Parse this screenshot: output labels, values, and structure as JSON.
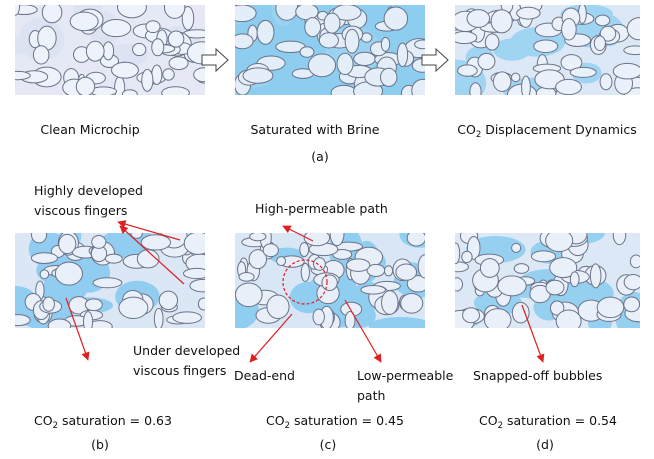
{
  "row_a": {
    "captions": [
      "Clean Microchip",
      "Saturated with Brine"
    ],
    "co2_caption": {
      "main": "CO",
      "sub": "2",
      "rest": " Displacement Dynamics"
    },
    "label": "(a)"
  },
  "panel_b": {
    "annotations": [
      [
        "Highly developed",
        "viscous fingers"
      ],
      [
        "Under developed",
        "viscous fingers"
      ]
    ],
    "saturation": {
      "main": "CO",
      "sub": "2",
      "rest": " saturation = 0.63"
    },
    "label": "(b)"
  },
  "panel_c": {
    "annotations": [
      [
        "High-permeable path"
      ],
      [
        "Dead-end"
      ],
      [
        "Low-permeable",
        "path"
      ]
    ],
    "saturation": {
      "main": "CO",
      "sub": "2",
      "rest": " saturation = 0.45"
    },
    "label": "(c)"
  },
  "panel_d": {
    "annotations": [
      [
        "Snapped-off bubbles"
      ]
    ],
    "saturation": {
      "main": "CO",
      "sub": "2",
      "rest": " saturation = 0.54"
    },
    "label": "(d)"
  }
}
